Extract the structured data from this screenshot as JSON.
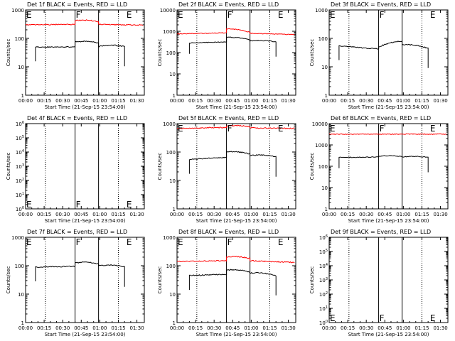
{
  "chart_data": [
    {
      "type": "line",
      "title": "Det 1f BLACK = Events, RED = LLD",
      "ylabel": "Counts/sec",
      "xlabel": "Start Time (21-Sep-15 23:54:00)",
      "yscale": "log",
      "ylim": [
        1,
        1000
      ],
      "yticks": [
        "1",
        "10",
        "100",
        "1000"
      ],
      "xticks": [
        "00:00",
        "00:15",
        "00:30",
        "00:45",
        "01:00",
        "01:15",
        "01:30"
      ],
      "xrange_min": [
        0,
        96
      ],
      "markers": [
        {
          "label": "E",
          "x": 0
        },
        {
          "label": "F",
          "x": 40
        },
        {
          "label": "E",
          "x": 81
        }
      ],
      "solid_lines": [
        40,
        59
      ],
      "dotted_lines": [
        16,
        75
      ],
      "series": [
        {
          "color": "#000000",
          "x_range": [
            8,
            80
          ],
          "segments": [
            {
              "x": [
                8,
                40
              ],
              "y": [
                50,
                50
              ]
            },
            {
              "x": [
                40,
                59
              ],
              "y": [
                75,
                68
              ]
            },
            {
              "x": [
                59,
                80
              ],
              "y": [
                52,
                52
              ]
            }
          ]
        },
        {
          "color": "#ff0000",
          "x_range": [
            0,
            95
          ],
          "segments": [
            {
              "x": [
                0,
                40
              ],
              "y": [
                300,
                310
              ]
            },
            {
              "x": [
                40,
                59
              ],
              "y": [
                420,
                380
              ]
            },
            {
              "x": [
                59,
                95
              ],
              "y": [
                310,
                290
              ]
            }
          ]
        }
      ]
    },
    {
      "type": "line",
      "title": "Det 2f BLACK = Events, RED = LLD",
      "ylabel": "Counts/sec",
      "xlabel": "Start Time (21-Sep-15 23:54:00)",
      "yscale": "log",
      "ylim": [
        1,
        10000
      ],
      "yticks": [
        "1",
        "10",
        "100",
        "1000",
        "10000"
      ],
      "xticks": [
        "00:00",
        "00:15",
        "00:30",
        "00:45",
        "01:00",
        "01:15",
        "01:30"
      ],
      "xrange_min": [
        0,
        96
      ],
      "markers": [
        {
          "label": "E",
          "x": 0
        },
        {
          "label": "F",
          "x": 40
        },
        {
          "label": "E",
          "x": 81
        }
      ],
      "solid_lines": [
        40,
        59
      ],
      "dotted_lines": [
        16,
        75
      ],
      "series": [
        {
          "color": "#000000",
          "x_range": [
            10,
            80
          ],
          "segments": [
            {
              "x": [
                10,
                40
              ],
              "y": [
                280,
                320
              ]
            },
            {
              "x": [
                40,
                59
              ],
              "y": [
                520,
                400
              ]
            },
            {
              "x": [
                59,
                80
              ],
              "y": [
                350,
                320
              ]
            }
          ]
        },
        {
          "color": "#ff0000",
          "x_range": [
            0,
            95
          ],
          "segments": [
            {
              "x": [
                0,
                40
              ],
              "y": [
                750,
                850
              ]
            },
            {
              "x": [
                40,
                59
              ],
              "y": [
                1300,
                900
              ]
            },
            {
              "x": [
                59,
                95
              ],
              "y": [
                800,
                700
              ]
            }
          ]
        }
      ]
    },
    {
      "type": "line",
      "title": "Det 3f BLACK = Events, RED = LLD",
      "ylabel": "Counts/sec",
      "xlabel": "Start Time (21-Sep-15 23:54:00)",
      "yscale": "log",
      "ylim": [
        1,
        1000
      ],
      "yticks": [
        "1",
        "10",
        "100",
        "1000"
      ],
      "xticks": [
        "00:00",
        "00:15",
        "00:30",
        "00:45",
        "01:00",
        "01:15",
        "01:30"
      ],
      "xrange_min": [
        0,
        96
      ],
      "markers": [
        {
          "label": "E",
          "x": 0
        },
        {
          "label": "F",
          "x": 40
        },
        {
          "label": "E",
          "x": 81
        }
      ],
      "solid_lines": [
        40,
        59
      ],
      "dotted_lines": [
        16,
        75
      ],
      "series": [
        {
          "color": "#000000",
          "x_range": [
            8,
            80
          ],
          "segments": [
            {
              "x": [
                8,
                40
              ],
              "y": [
                55,
                42
              ]
            },
            {
              "x": [
                40,
                59
              ],
              "y": [
                50,
                80
              ]
            },
            {
              "x": [
                59,
                80
              ],
              "y": [
                60,
                45
              ]
            }
          ]
        }
      ]
    },
    {
      "type": "line",
      "title": "Det 4f BLACK = Events, RED = LLD",
      "ylabel": "Counts/sec",
      "xlabel": "Start Time (21-Sep-15 23:54:00)",
      "yscale": "log",
      "ylim": [
        1,
        1000000
      ],
      "yticks": [
        "10^0",
        "10^1",
        "10^2",
        "10^3",
        "10^4",
        "10^5",
        "10^6"
      ],
      "xticks": [
        "00:00",
        "00:15",
        "00:30",
        "00:45",
        "01:00",
        "01:15",
        "01:30"
      ],
      "xrange_min": [
        0,
        96
      ],
      "markers": [
        {
          "label": "E",
          "x": 0
        },
        {
          "label": "F",
          "x": 40
        },
        {
          "label": "E",
          "x": 81
        }
      ],
      "solid_lines": [
        40,
        59
      ],
      "dotted_lines": [
        16,
        75
      ],
      "series": []
    },
    {
      "type": "line",
      "title": "Det 5f BLACK = Events, RED = LLD",
      "ylabel": "Counts/sec",
      "xlabel": "Start Time (21-Sep-15 23:54:00)",
      "yscale": "log",
      "ylim": [
        1,
        1000
      ],
      "yticks": [
        "1",
        "10",
        "100",
        "1000"
      ],
      "xticks": [
        "00:00",
        "00:15",
        "00:30",
        "00:45",
        "01:00",
        "01:15",
        "01:30"
      ],
      "xrange_min": [
        0,
        96
      ],
      "markers": [
        {
          "label": "E",
          "x": 0
        },
        {
          "label": "F",
          "x": 40
        },
        {
          "label": "E",
          "x": 81
        }
      ],
      "solid_lines": [
        40,
        59
      ],
      "dotted_lines": [
        16,
        75
      ],
      "series": [
        {
          "color": "#000000",
          "x_range": [
            10,
            80
          ],
          "segments": [
            {
              "x": [
                10,
                40
              ],
              "y": [
                55,
                65
              ]
            },
            {
              "x": [
                40,
                59
              ],
              "y": [
                100,
                85
              ]
            },
            {
              "x": [
                59,
                80
              ],
              "y": [
                75,
                68
              ]
            }
          ]
        },
        {
          "color": "#ff0000",
          "x_range": [
            0,
            95
          ],
          "segments": [
            {
              "x": [
                0,
                40
              ],
              "y": [
                680,
                730
              ]
            },
            {
              "x": [
                40,
                59
              ],
              "y": [
                800,
                760
              ]
            },
            {
              "x": [
                59,
                95
              ],
              "y": [
                710,
                680
              ]
            }
          ]
        }
      ]
    },
    {
      "type": "line",
      "title": "Det 6f BLACK = Events, RED = LLD",
      "ylabel": "Counts/sec",
      "xlabel": "Start Time (21-Sep-15 23:54:00)",
      "yscale": "log",
      "ylim": [
        1,
        10000
      ],
      "yticks": [
        "1",
        "10",
        "100",
        "1000",
        "10000"
      ],
      "xticks": [
        "00:00",
        "00:15",
        "00:30",
        "00:45",
        "01:00",
        "01:15",
        "01:30"
      ],
      "xrange_min": [
        0,
        96
      ],
      "markers": [
        {
          "label": "E",
          "x": 0
        },
        {
          "label": "F",
          "x": 40
        },
        {
          "label": "E",
          "x": 81
        }
      ],
      "solid_lines": [
        40,
        59
      ],
      "dotted_lines": [
        16,
        75
      ],
      "series": [
        {
          "color": "#000000",
          "x_range": [
            8,
            80
          ],
          "segments": [
            {
              "x": [
                8,
                40
              ],
              "y": [
                260,
                270
              ]
            },
            {
              "x": [
                40,
                59
              ],
              "y": [
                290,
                280
              ]
            },
            {
              "x": [
                59,
                80
              ],
              "y": [
                270,
                260
              ]
            }
          ]
        },
        {
          "color": "#ff0000",
          "x_range": [
            0,
            95
          ],
          "segments": [
            {
              "x": [
                0,
                95
              ],
              "y": [
                3200,
                3200
              ]
            }
          ]
        }
      ]
    },
    {
      "type": "line",
      "title": "Det 7f BLACK = Events, RED = LLD",
      "ylabel": "Counts/sec",
      "xlabel": "Start Time (21-Sep-15 23:54:00)",
      "yscale": "log",
      "ylim": [
        1,
        1000
      ],
      "yticks": [
        "1",
        "10",
        "100",
        "1000"
      ],
      "xticks": [
        "00:00",
        "00:15",
        "00:30",
        "00:45",
        "01:00",
        "01:15",
        "01:30"
      ],
      "xrange_min": [
        0,
        96
      ],
      "markers": [
        {
          "label": "E",
          "x": 0
        },
        {
          "label": "F",
          "x": 40
        },
        {
          "label": "E",
          "x": 81
        }
      ],
      "solid_lines": [
        40,
        59
      ],
      "dotted_lines": [
        16,
        75
      ],
      "series": [
        {
          "color": "#000000",
          "x_range": [
            8,
            80
          ],
          "segments": [
            {
              "x": [
                8,
                40
              ],
              "y": [
                90,
                95
              ]
            },
            {
              "x": [
                40,
                59
              ],
              "y": [
                125,
                115
              ]
            },
            {
              "x": [
                59,
                80
              ],
              "y": [
                100,
                90
              ]
            }
          ]
        }
      ]
    },
    {
      "type": "line",
      "title": "Det 8f BLACK = Events, RED = LLD",
      "ylabel": "Counts/sec",
      "xlabel": "Start Time (21-Sep-15 23:54:00)",
      "yscale": "log",
      "ylim": [
        1,
        1000
      ],
      "yticks": [
        "1",
        "10",
        "100",
        "1000"
      ],
      "xticks": [
        "00:00",
        "00:15",
        "00:30",
        "00:45",
        "01:00",
        "01:15",
        "01:30"
      ],
      "xrange_min": [
        0,
        96
      ],
      "markers": [
        {
          "label": "E",
          "x": 0
        },
        {
          "label": "F",
          "x": 40
        },
        {
          "label": "E",
          "x": 81
        }
      ],
      "solid_lines": [
        40,
        59
      ],
      "dotted_lines": [
        16,
        75
      ],
      "series": [
        {
          "color": "#000000",
          "x_range": [
            10,
            80
          ],
          "segments": [
            {
              "x": [
                10,
                40
              ],
              "y": [
                45,
                50
              ]
            },
            {
              "x": [
                40,
                59
              ],
              "y": [
                70,
                60
              ]
            },
            {
              "x": [
                59,
                80
              ],
              "y": [
                55,
                45
              ]
            }
          ]
        },
        {
          "color": "#ff0000",
          "x_range": [
            0,
            95
          ],
          "segments": [
            {
              "x": [
                0,
                40
              ],
              "y": [
                140,
                150
              ]
            },
            {
              "x": [
                40,
                59
              ],
              "y": [
                200,
                180
              ]
            },
            {
              "x": [
                59,
                95
              ],
              "y": [
                150,
                130
              ]
            }
          ]
        }
      ]
    },
    {
      "type": "line",
      "title": "Det 9f BLACK = Events, RED = LLD",
      "ylabel": "Counts/sec",
      "xlabel": "Start Time (21-Sep-15 23:54:00)",
      "yscale": "log",
      "ylim": [
        1,
        1000000
      ],
      "yticks": [
        "10^0",
        "10^1",
        "10^2",
        "10^3",
        "10^4",
        "10^5",
        "10^6"
      ],
      "xticks": [
        "00:00",
        "00:15",
        "00:30",
        "00:45",
        "01:00",
        "01:15",
        "01:30"
      ],
      "xrange_min": [
        0,
        96
      ],
      "markers": [
        {
          "label": "E",
          "x": 0
        },
        {
          "label": "F",
          "x": 40
        },
        {
          "label": "E",
          "x": 81
        }
      ],
      "solid_lines": [
        40,
        59
      ],
      "dotted_lines": [
        16,
        75
      ],
      "series": []
    }
  ]
}
